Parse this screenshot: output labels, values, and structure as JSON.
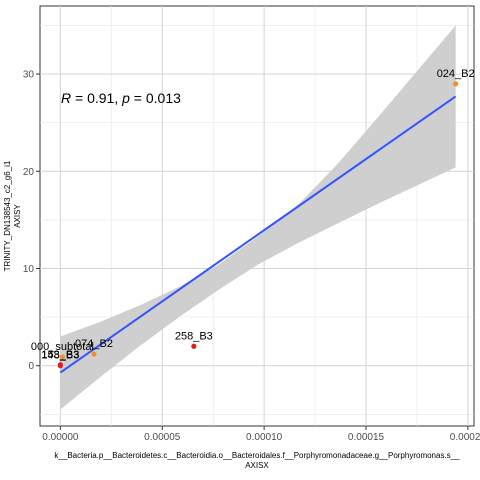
{
  "chart_data": {
    "type": "scatter",
    "title": "",
    "xlabel": "k__Bacteria.p__Bacteroidetes.c__Bacteroidia.o__Bacteroidales.f__Porphyromonadaceae.g__Porphyromonas.s__",
    "xlabel_sub": "AXISX",
    "ylabel": "TRINITY_DN138543_c2_g6_i1",
    "ylabel_sub": "AXISY",
    "xlim": [
      -1e-05,
      0.000203
    ],
    "ylim": [
      -6.2,
      37
    ],
    "x_ticks": [
      0,
      5e-05,
      0.0001,
      0.00015,
      0.0002
    ],
    "x_tick_labels": [
      "0.00000",
      "0.00005",
      "0.00010",
      "0.00015",
      "0.00020"
    ],
    "y_ticks": [
      0,
      10,
      20,
      30
    ],
    "y_tick_labels": [
      "0",
      "10",
      "20",
      "30"
    ],
    "grid": true,
    "annotation": {
      "R_label": "R",
      "R_value": "= 0.91, ",
      "p_label": "p",
      "p_value": "= 0.013"
    },
    "points": [
      {
        "label": "024_B2",
        "x": 0.000194,
        "y": 29.0,
        "color": "#f28e2b"
      },
      {
        "label": "258_B3",
        "x": 6.55e-05,
        "y": 2.0,
        "color": "#e41a1c"
      },
      {
        "label": "074_B2",
        "x": 1.65e-05,
        "y": 1.2,
        "color": "#f28e2b"
      },
      {
        "label": "000_subtotal",
        "x": 1e-06,
        "y": 0.9,
        "color": "#f28e2b"
      },
      {
        "label": "153_B3",
        "x": 0.0,
        "y": 0.1,
        "color": "#e41a1c"
      },
      {
        "label": "148_B3",
        "x": 0.0,
        "y": 0.0,
        "color": "#e41a1c"
      }
    ],
    "fit": {
      "x_start": 0.0,
      "x_end": 0.000194,
      "y_start": -0.7,
      "y_end": 27.7,
      "color": "#3355ff"
    },
    "confidence_band": {
      "x": [
        0,
        1.94e-05,
        3.88e-05,
        5.82e-05,
        7.76e-05,
        9.7e-05,
        0.0001164,
        0.0001358,
        0.0001552,
        0.0001746,
        0.000194
      ],
      "lower": [
        -4.5,
        -1.2,
        2.0,
        5.0,
        7.8,
        10.4,
        12.6,
        14.6,
        16.6,
        18.5,
        20.4
      ],
      "upper": [
        3.0,
        4.5,
        6.2,
        8.1,
        10.4,
        13.3,
        16.5,
        20.7,
        25.4,
        30.2,
        35.0
      ],
      "color": "#cccccc"
    }
  }
}
